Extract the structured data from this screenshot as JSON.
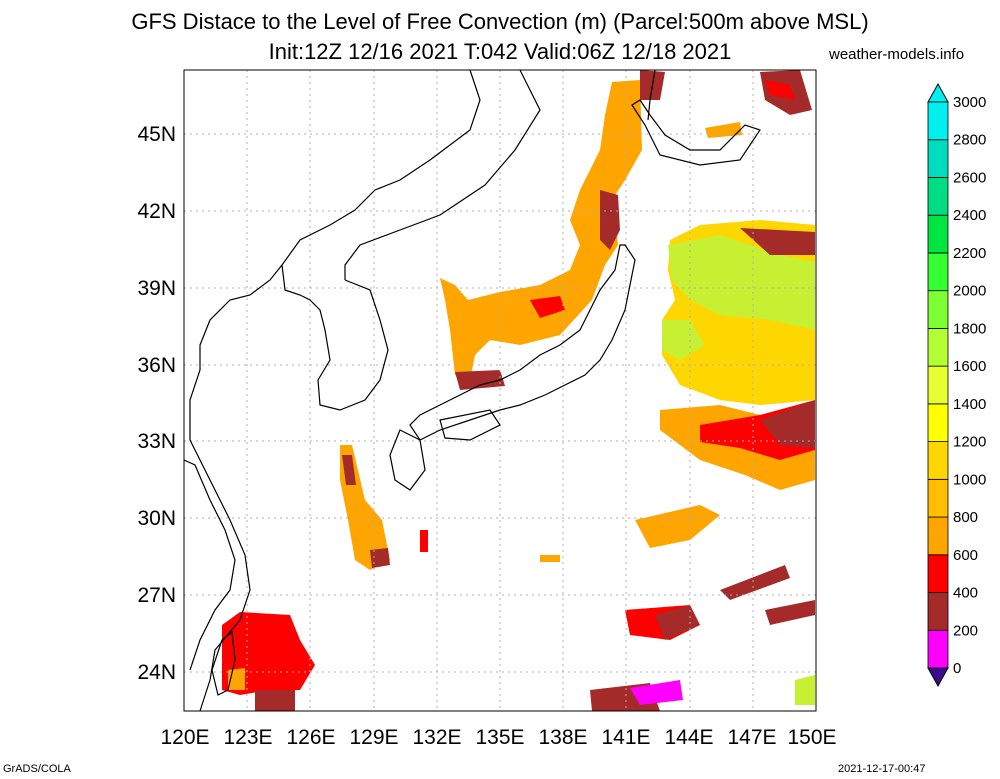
{
  "title": {
    "line1": "GFS Distace to the Level of Free Convection (m) (Parcel:500m above MSL)",
    "line2": "Init:12Z 12/16 2021 T:042 Valid:06Z 12/18 2021"
  },
  "source": "weather-models.info",
  "footer": {
    "left": "GrADS/COLA",
    "right": "2021-12-17-00:47"
  },
  "axes": {
    "lon_labels": [
      "120E",
      "123E",
      "126E",
      "129E",
      "132E",
      "135E",
      "138E",
      "141E",
      "144E",
      "147E",
      "150E"
    ],
    "lat_labels": [
      "24N",
      "27N",
      "30N",
      "33N",
      "36N",
      "39N",
      "42N",
      "45N"
    ],
    "lon_range": [
      120,
      150
    ],
    "lat_range": [
      22.5,
      47.5
    ]
  },
  "legend": {
    "levels": [
      "0",
      "200",
      "400",
      "600",
      "800",
      "1000",
      "1200",
      "1400",
      "1600",
      "1800",
      "2000",
      "2200",
      "2400",
      "2600",
      "2800",
      "3000"
    ],
    "colors": [
      "#3c0a8c",
      "#ff00ff",
      "#a52a2a",
      "#ff0000",
      "#ffa500",
      "#ffbe00",
      "#ffd700",
      "#ffff00",
      "#e6ff33",
      "#b4ff33",
      "#7cff33",
      "#33ff33",
      "#00e641",
      "#00dc82",
      "#00dcbe",
      "#00f0f0"
    ]
  },
  "colors": {
    "fill_orange": "#ffa500",
    "fill_red": "#ff0000",
    "fill_brown": "#a52a2a",
    "fill_magenta": "#ff00ff",
    "fill_yellowgreen": "#c8f032",
    "fill_yellow": "#ffd700"
  }
}
